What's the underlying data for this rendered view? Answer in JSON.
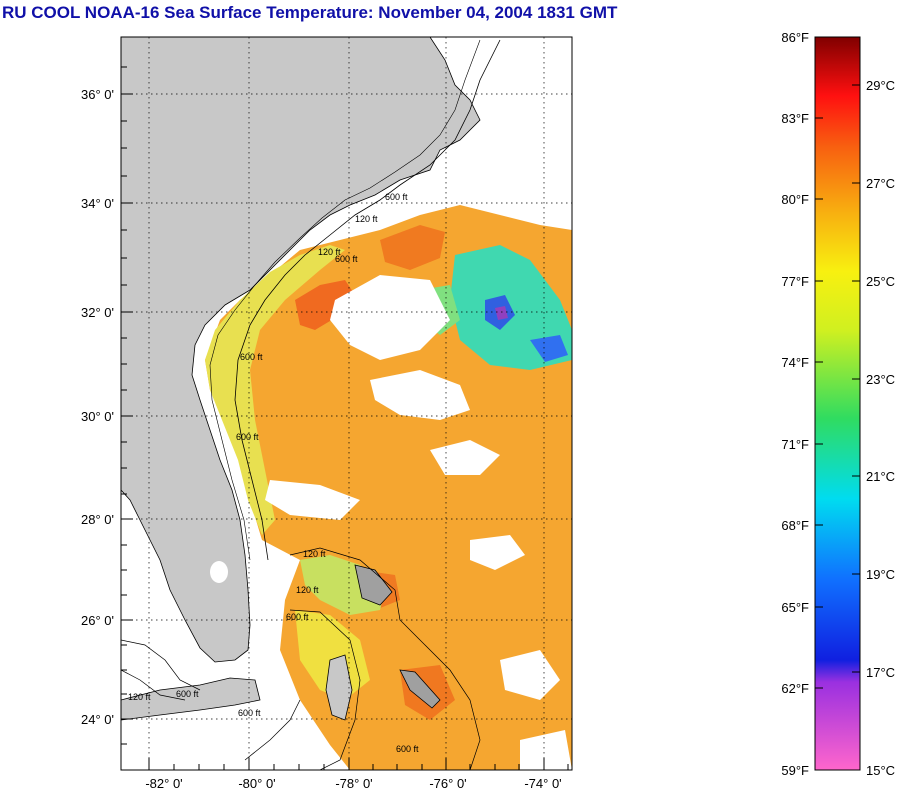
{
  "title": "RU COOL  NOAA-16  Sea Surface Temperature:  November 04, 2004 1831 GMT",
  "latitude_labels": [
    "36° 0'",
    "34° 0'",
    "32° 0'",
    "30° 0'",
    "28° 0'",
    "26° 0'",
    "24° 0'"
  ],
  "longitude_labels": [
    "-82° 0'",
    "-80° 0'",
    "-78° 0'",
    "-76° 0'",
    "-74° 0'"
  ],
  "depth_contour_labels": [
    "600 ft",
    "120 ft",
    "600 ft",
    "120 ft",
    "600 ft",
    "600 ft",
    "120 ft",
    "120 ft",
    "600 ft",
    "600 ft",
    "120 ft",
    "600 ft",
    "600 ft"
  ],
  "colorbar": {
    "fahrenheit_labels": [
      "86°F",
      "83°F",
      "80°F",
      "77°F",
      "74°F",
      "71°F",
      "68°F",
      "65°F",
      "62°F",
      "59°F"
    ],
    "celsius_labels": [
      "29°C",
      "27°C",
      "25°C",
      "23°C",
      "21°C",
      "19°C",
      "17°C",
      "15°C"
    ]
  },
  "colors": {
    "title": "#1010a8",
    "land": "#c8c8c8",
    "sst_warm": "#f5a020",
    "sst_cool": "#40d8b0"
  }
}
